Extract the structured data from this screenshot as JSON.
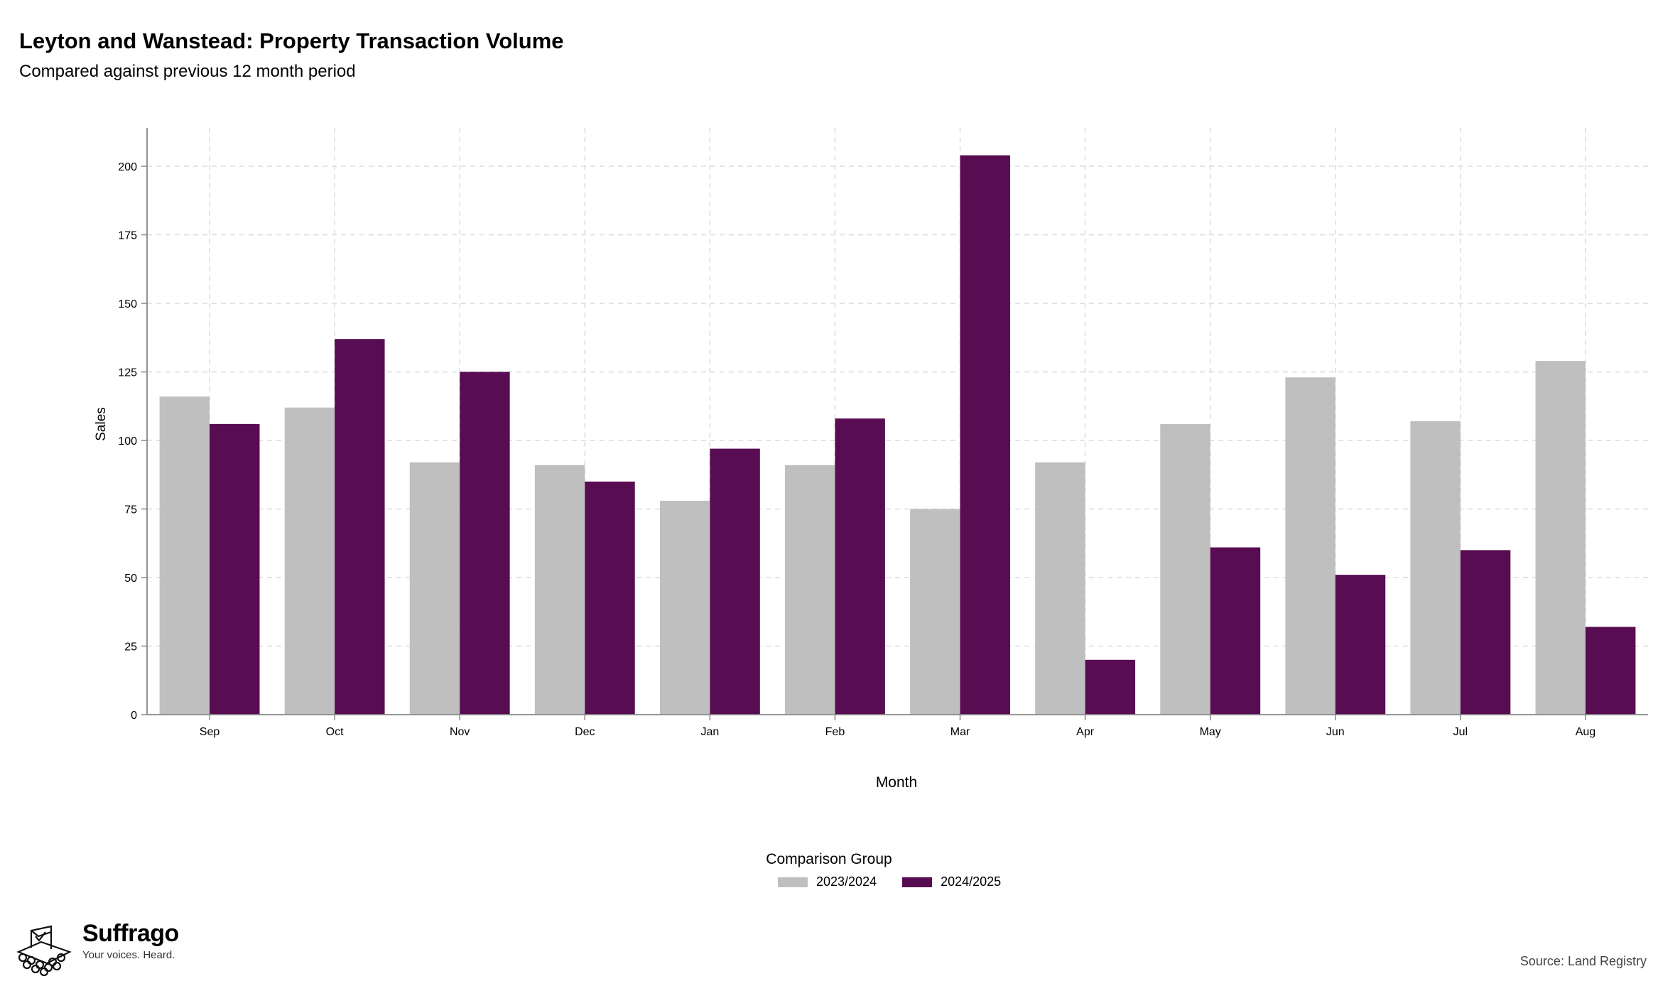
{
  "header": {
    "title": "Leyton and Wanstead: Property Transaction Volume",
    "subtitle": "Compared against previous 12 month period"
  },
  "legend": {
    "title": "Comparison Group",
    "items": [
      {
        "label": "2023/2024",
        "color": "#bfbfbf"
      },
      {
        "label": "2024/2025",
        "color": "#580c52"
      }
    ]
  },
  "brand": {
    "name": "Suffrago",
    "tagline": "Your voices. Heard.",
    "icon": "ballot-box-icon"
  },
  "source": "Source: Land Registry",
  "chart_data": {
    "type": "bar",
    "categories": [
      "Sep",
      "Oct",
      "Nov",
      "Dec",
      "Jan",
      "Feb",
      "Mar",
      "Apr",
      "May",
      "Jun",
      "Jul",
      "Aug"
    ],
    "series": [
      {
        "name": "2023/2024",
        "color": "#bfbfbf",
        "values": [
          116,
          112,
          92,
          91,
          78,
          91,
          75,
          92,
          106,
          123,
          107,
          129
        ]
      },
      {
        "name": "2024/2025",
        "color": "#580c52",
        "values": [
          106,
          137,
          125,
          85,
          97,
          108,
          204,
          20,
          61,
          51,
          60,
          32
        ]
      }
    ],
    "xlabel": "Month",
    "ylabel": "Sales",
    "ylim": [
      0,
      214
    ],
    "yticks": [
      0,
      25,
      50,
      75,
      100,
      125,
      150,
      175,
      200
    ],
    "grid": true
  }
}
